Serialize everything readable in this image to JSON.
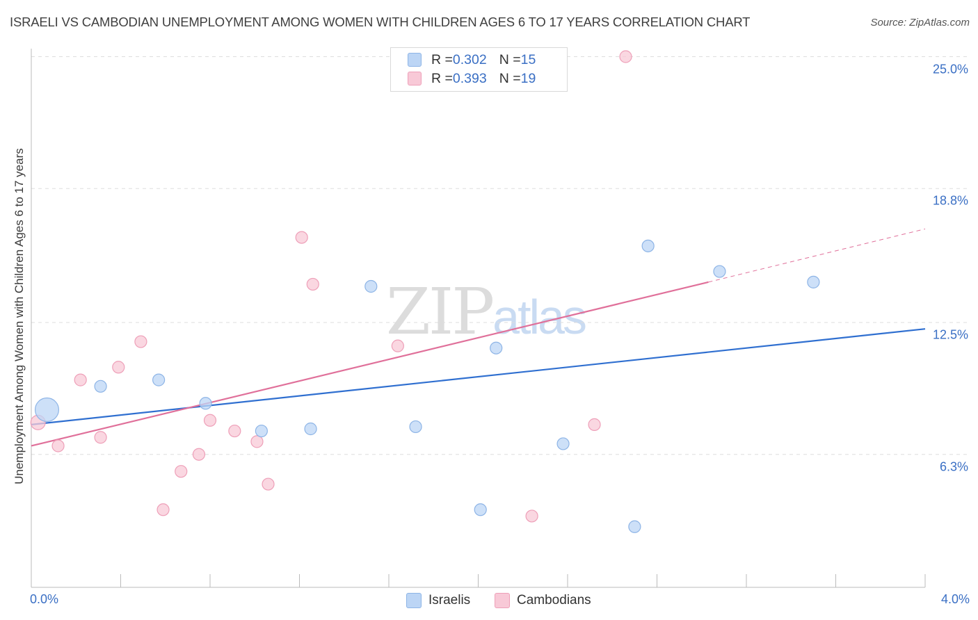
{
  "title": "ISRAELI VS CAMBODIAN UNEMPLOYMENT AMONG WOMEN WITH CHILDREN AGES 6 TO 17 YEARS CORRELATION CHART",
  "source": "Source: ZipAtlas.com",
  "watermark": {
    "zip": "ZIP",
    "atlas": "atlas"
  },
  "colors": {
    "israeli_fill": "#bcd5f5",
    "israeli_stroke": "#8db4e6",
    "israeli_line": "#2f6fd0",
    "cambodian_fill": "#f8c9d7",
    "cambodian_stroke": "#ee9fb8",
    "cambodian_line": "#e0709a",
    "tick_text": "#3a6fc4",
    "grid": "#dddddd"
  },
  "legend": {
    "israeli": {
      "r_label": "R = ",
      "r_value": "0.302",
      "n_label": "N = ",
      "n_value": "15"
    },
    "cambodian": {
      "r_label": "R = ",
      "r_value": "0.393",
      "n_label": "N = ",
      "n_value": "19"
    }
  },
  "bottom_legend": {
    "israeli": "Israelis",
    "cambodian": "Cambodians"
  },
  "chart_data": {
    "type": "scatter",
    "title": "ISRAELI VS CAMBODIAN UNEMPLOYMENT AMONG WOMEN WITH CHILDREN AGES 6 TO 17 YEARS CORRELATION CHART",
    "xlabel": "",
    "ylabel": "Unemployment Among Women with Children Ages 6 to 17 years",
    "xlim": [
      0,
      4.0
    ],
    "ylim": [
      0,
      25.6
    ],
    "x_tick_labels": [
      "0.0%",
      "4.0%"
    ],
    "x_tick_values": [
      0,
      4.0
    ],
    "y_tick_labels": [
      "6.3%",
      "12.5%",
      "18.8%",
      "25.0%"
    ],
    "y_tick_values": [
      6.3,
      12.5,
      18.8,
      25.0
    ],
    "series": [
      {
        "name": "Israelis",
        "points": [
          {
            "x": 0.07,
            "y": 8.4,
            "size": 3
          },
          {
            "x": 0.31,
            "y": 9.5,
            "size": 1
          },
          {
            "x": 0.57,
            "y": 9.8,
            "size": 1
          },
          {
            "x": 0.78,
            "y": 8.7,
            "size": 1
          },
          {
            "x": 1.03,
            "y": 7.4,
            "size": 1
          },
          {
            "x": 1.25,
            "y": 7.5,
            "size": 1
          },
          {
            "x": 1.52,
            "y": 14.2,
            "size": 1
          },
          {
            "x": 1.72,
            "y": 7.6,
            "size": 1
          },
          {
            "x": 2.01,
            "y": 3.7,
            "size": 1
          },
          {
            "x": 2.08,
            "y": 11.3,
            "size": 1
          },
          {
            "x": 2.38,
            "y": 6.8,
            "size": 1
          },
          {
            "x": 2.7,
            "y": 2.9,
            "size": 1
          },
          {
            "x": 2.76,
            "y": 16.1,
            "size": 1
          },
          {
            "x": 3.08,
            "y": 14.9,
            "size": 1
          },
          {
            "x": 3.5,
            "y": 14.4,
            "size": 1
          }
        ],
        "trend": {
          "x0": 0,
          "y0": 7.7,
          "x1": 4.0,
          "y1": 12.2
        }
      },
      {
        "name": "Cambodians",
        "points": [
          {
            "x": 0.03,
            "y": 7.8,
            "size": 1.5
          },
          {
            "x": 0.12,
            "y": 6.7,
            "size": 1
          },
          {
            "x": 0.22,
            "y": 9.8,
            "size": 1
          },
          {
            "x": 0.31,
            "y": 7.1,
            "size": 1
          },
          {
            "x": 0.39,
            "y": 10.4,
            "size": 1
          },
          {
            "x": 0.49,
            "y": 11.6,
            "size": 1
          },
          {
            "x": 0.59,
            "y": 3.7,
            "size": 1
          },
          {
            "x": 0.67,
            "y": 5.5,
            "size": 1
          },
          {
            "x": 0.75,
            "y": 6.3,
            "size": 1
          },
          {
            "x": 0.8,
            "y": 7.9,
            "size": 1
          },
          {
            "x": 0.91,
            "y": 7.4,
            "size": 1
          },
          {
            "x": 1.01,
            "y": 6.9,
            "size": 1
          },
          {
            "x": 1.06,
            "y": 4.9,
            "size": 1
          },
          {
            "x": 1.21,
            "y": 16.5,
            "size": 1
          },
          {
            "x": 1.26,
            "y": 14.3,
            "size": 1
          },
          {
            "x": 1.64,
            "y": 11.4,
            "size": 1
          },
          {
            "x": 2.24,
            "y": 3.4,
            "size": 1
          },
          {
            "x": 2.52,
            "y": 7.7,
            "size": 1
          },
          {
            "x": 2.66,
            "y": 25.0,
            "size": 1
          }
        ],
        "trend": {
          "x0": 0,
          "y0": 6.7,
          "x1": 3.03,
          "y1": 14.4,
          "dashed_to_x": 4.0,
          "dashed_to_y": 16.9
        }
      }
    ]
  }
}
